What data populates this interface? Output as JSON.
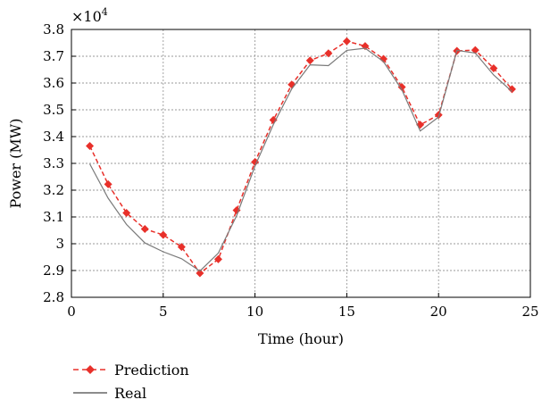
{
  "chart_data": {
    "type": "line",
    "title": "",
    "xlabel": "Time (hour)",
    "ylabel": "Power (MW)",
    "y_multiplier_base": "×10",
    "y_multiplier_exponent": "4",
    "xlim": [
      0,
      25
    ],
    "ylim": [
      2.8,
      3.8
    ],
    "x_ticks": [
      0,
      5,
      10,
      15,
      20,
      25
    ],
    "x_tick_labels": [
      "0",
      "5",
      "10",
      "15",
      "20",
      "25"
    ],
    "y_ticks": [
      2.8,
      2.9,
      3.0,
      3.1,
      3.2,
      3.3,
      3.4,
      3.5,
      3.6,
      3.7,
      3.8
    ],
    "y_tick_labels": [
      "2.8",
      "2.9",
      "3",
      "3.1",
      "3.2",
      "3.3",
      "3.4",
      "3.5",
      "3.6",
      "3.7",
      "3.8"
    ],
    "grid": true,
    "legend_position": "bottom-left, below plot",
    "x": [
      1,
      2,
      3,
      4,
      5,
      6,
      7,
      8,
      9,
      10,
      11,
      12,
      13,
      14,
      15,
      16,
      17,
      18,
      19,
      20,
      21,
      22,
      23,
      24
    ],
    "series": [
      {
        "name": "Prediction",
        "color": "#e8302a",
        "style": "dashed-diamond",
        "values": [
          3.365,
          3.222,
          3.115,
          3.055,
          3.033,
          2.988,
          2.89,
          2.942,
          3.125,
          3.305,
          3.462,
          3.594,
          3.684,
          3.711,
          3.756,
          3.738,
          3.69,
          3.585,
          3.444,
          3.481,
          3.72,
          3.723,
          3.655,
          3.577
        ]
      },
      {
        "name": "Real",
        "color": "#7a7a7a",
        "style": "solid",
        "values": [
          3.298,
          3.17,
          3.072,
          3.003,
          2.97,
          2.944,
          2.898,
          2.965,
          3.105,
          3.29,
          3.445,
          3.578,
          3.668,
          3.665,
          3.722,
          3.73,
          3.68,
          3.575,
          3.421,
          3.473,
          3.722,
          3.712,
          3.63,
          3.568
        ]
      }
    ]
  }
}
